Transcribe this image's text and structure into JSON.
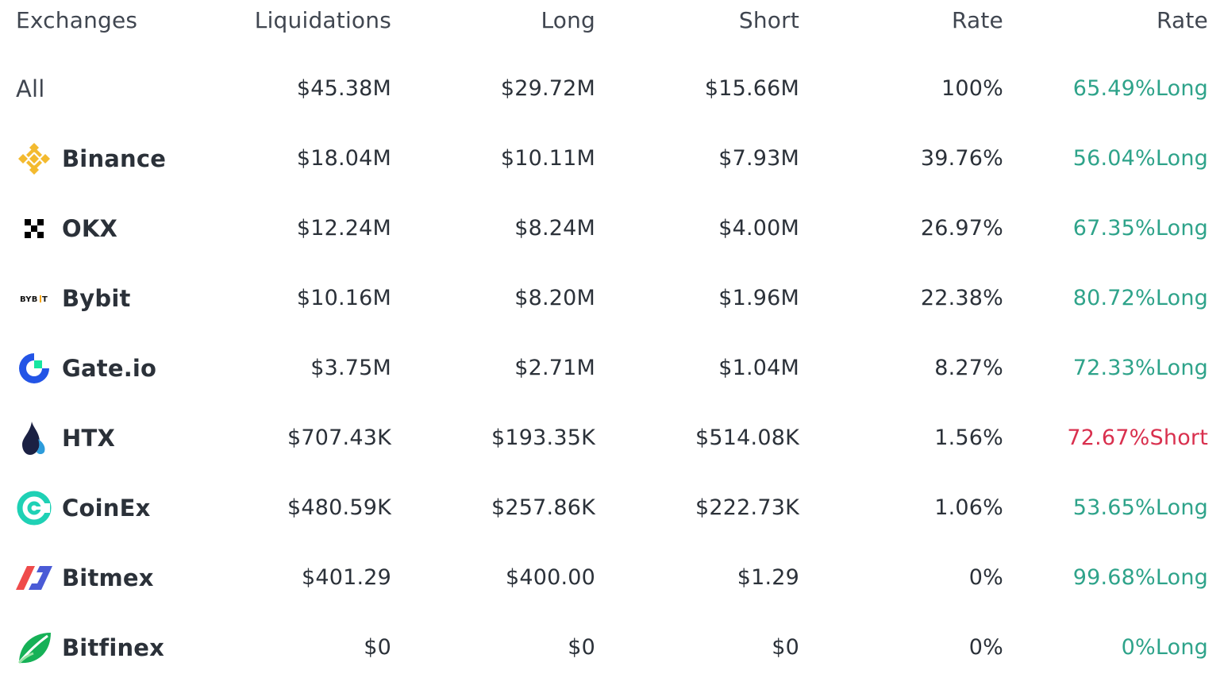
{
  "header": {
    "exchanges": "Exchanges",
    "liquidations": "Liquidations",
    "long": "Long",
    "short": "Short",
    "rate": "Rate",
    "rate2": "Rate"
  },
  "colors": {
    "long": "#2ea38a",
    "short": "#d9304e"
  },
  "rows": [
    {
      "name": "All",
      "icon": "",
      "liquidations": "$45.38M",
      "long": "$29.72M",
      "short": "$15.66M",
      "rate": "100%",
      "ratio": "65.49%Long",
      "side": "long"
    },
    {
      "name": "Binance",
      "icon": "binance-logo",
      "liquidations": "$18.04M",
      "long": "$10.11M",
      "short": "$7.93M",
      "rate": "39.76%",
      "ratio": "56.04%Long",
      "side": "long"
    },
    {
      "name": "OKX",
      "icon": "okx-logo",
      "liquidations": "$12.24M",
      "long": "$8.24M",
      "short": "$4.00M",
      "rate": "26.97%",
      "ratio": "67.35%Long",
      "side": "long"
    },
    {
      "name": "Bybit",
      "icon": "bybit-logo",
      "liquidations": "$10.16M",
      "long": "$8.20M",
      "short": "$1.96M",
      "rate": "22.38%",
      "ratio": "80.72%Long",
      "side": "long"
    },
    {
      "name": "Gate.io",
      "icon": "gateio-logo",
      "liquidations": "$3.75M",
      "long": "$2.71M",
      "short": "$1.04M",
      "rate": "8.27%",
      "ratio": "72.33%Long",
      "side": "long"
    },
    {
      "name": "HTX",
      "icon": "htx-logo",
      "liquidations": "$707.43K",
      "long": "$193.35K",
      "short": "$514.08K",
      "rate": "1.56%",
      "ratio": "72.67%Short",
      "side": "short"
    },
    {
      "name": "CoinEx",
      "icon": "coinex-logo",
      "liquidations": "$480.59K",
      "long": "$257.86K",
      "short": "$222.73K",
      "rate": "1.06%",
      "ratio": "53.65%Long",
      "side": "long"
    },
    {
      "name": "Bitmex",
      "icon": "bitmex-logo",
      "liquidations": "$401.29",
      "long": "$400.00",
      "short": "$1.29",
      "rate": "0%",
      "ratio": "99.68%Long",
      "side": "long"
    },
    {
      "name": "Bitfinex",
      "icon": "bitfinex-logo",
      "liquidations": "$0",
      "long": "$0",
      "short": "$0",
      "rate": "0%",
      "ratio": "0%Long",
      "side": "long"
    }
  ]
}
